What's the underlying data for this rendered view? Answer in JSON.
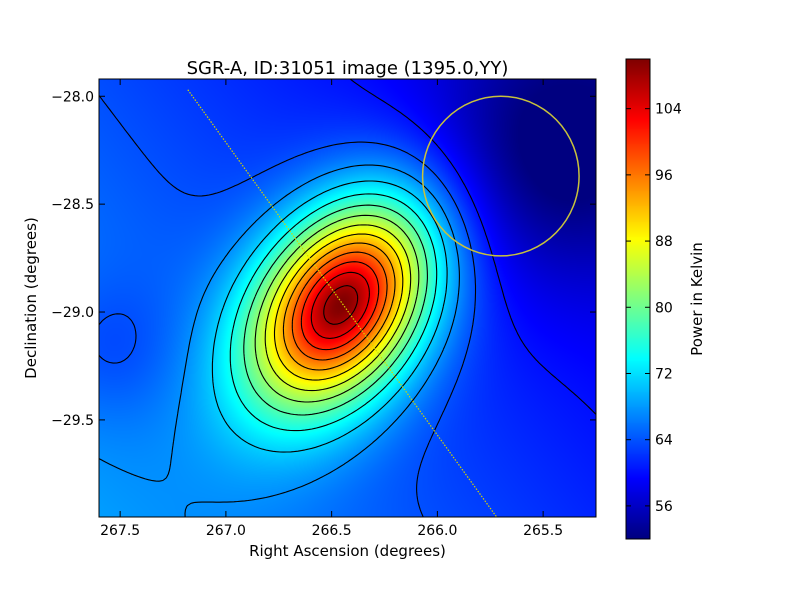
{
  "chart_data": {
    "type": "heatmap",
    "title": "SGR-A, ID:31051 image (1395.0,YY)",
    "xlabel": "Right Ascension (degrees)",
    "ylabel": "Declination (degrees)",
    "colorbar_label": "Power in Kelvin",
    "colormap": "jet",
    "xlim": [
      267.6,
      265.25
    ],
    "ylim": [
      -29.95,
      -27.92
    ],
    "x_ticks": [
      267.5,
      267.0,
      266.5,
      266.0,
      265.5
    ],
    "x_tick_labels": [
      "267.5",
      "267.0",
      "266.5",
      "266.0",
      "265.5"
    ],
    "y_ticks": [
      -28.0,
      -28.5,
      -29.0,
      -29.5
    ],
    "y_tick_labels": [
      "−28.0",
      "−28.5",
      "−29.0",
      "−29.5"
    ],
    "color_range": [
      52,
      110
    ],
    "colorbar_ticks": [
      56,
      64,
      72,
      80,
      88,
      96,
      104
    ],
    "colorbar_tick_labels": [
      "56",
      "64",
      "72",
      "80",
      "88",
      "96",
      "104"
    ],
    "peak": {
      "ra": 266.45,
      "dec": -28.96,
      "value": 110
    },
    "contours": "black",
    "overlays": {
      "circle": {
        "center_ra": 265.7,
        "center_dec": -28.37,
        "radius_deg": 0.37,
        "color": "#c8c23c"
      },
      "line": {
        "ra": [
          267.18,
          265.72
        ],
        "dec": [
          -27.97,
          -29.95
        ],
        "color": "#d4d400"
      }
    }
  }
}
